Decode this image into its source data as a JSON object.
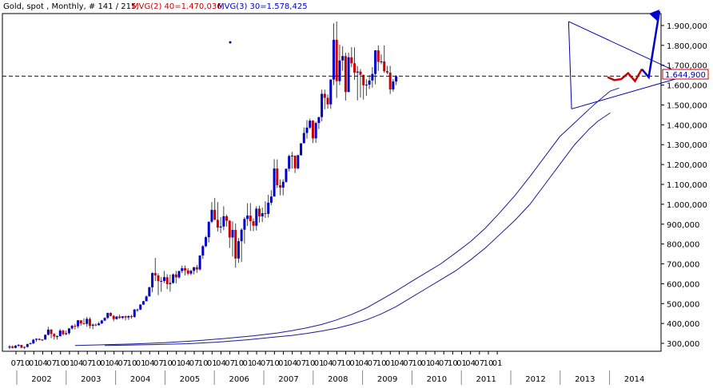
{
  "chart_data": {
    "type": "candlestick",
    "title": "Gold, spot , Monthly, # 141 / 215,",
    "indicators": [
      {
        "label": "MVG(2) 40=1.470,036,",
        "period": 40,
        "value": 1470.036
      },
      {
        "label": "MVG(3) 30=1.578,425",
        "period": 30,
        "value": 1578.425
      }
    ],
    "current_price_label": "1.644,900",
    "current_price": 1644.9,
    "ylim": [
      260,
      1960
    ],
    "y_ticks": [
      {
        "value": 300,
        "label": "300,000"
      },
      {
        "value": 400,
        "label": "400,000"
      },
      {
        "value": 500,
        "label": "500,000"
      },
      {
        "value": 600,
        "label": "600,000"
      },
      {
        "value": 700,
        "label": "700,000"
      },
      {
        "value": 800,
        "label": "800,000"
      },
      {
        "value": 900,
        "label": "900,000"
      },
      {
        "value": 1000,
        "label": "1.000,000"
      },
      {
        "value": 1100,
        "label": "1.100,000"
      },
      {
        "value": 1200,
        "label": "1.200,000"
      },
      {
        "value": 1300,
        "label": "1.300,000"
      },
      {
        "value": 1400,
        "label": "1.400,000"
      },
      {
        "value": 1500,
        "label": "1.500,000"
      },
      {
        "value": 1600,
        "label": "1.600,000"
      },
      {
        "value": 1700,
        "label": "1.700,000"
      },
      {
        "value": 1800,
        "label": "1.800,000"
      },
      {
        "value": 1900,
        "label": "1.900,000"
      }
    ],
    "x_month_ticks": [
      "07",
      "10",
      "01",
      "04",
      "07",
      "10",
      "01",
      "04",
      "07",
      "10",
      "01",
      "04",
      "07",
      "10",
      "01",
      "04",
      "07",
      "10",
      "01",
      "04",
      "07",
      "10",
      "01",
      "04",
      "07",
      "10",
      "01",
      "04",
      "07",
      "10",
      "01",
      "04",
      "07",
      "10",
      "01",
      "04",
      "07",
      "10",
      "01",
      "04",
      "07",
      "10",
      "01",
      "04",
      "07",
      "10",
      "01",
      "04",
      "07",
      "10",
      "01",
      "04",
      "07",
      "10",
      "01"
    ],
    "x_year_labels": [
      "2002",
      "2003",
      "2004",
      "2005",
      "2006",
      "2007",
      "2008",
      "2009",
      "2010",
      "2011",
      "2012",
      "2013",
      "2014"
    ],
    "candles": [
      {
        "o": 279,
        "h": 291,
        "l": 271,
        "c": 284
      },
      {
        "o": 284,
        "h": 290,
        "l": 274,
        "c": 277
      },
      {
        "o": 277,
        "h": 292,
        "l": 275,
        "c": 288
      },
      {
        "o": 288,
        "h": 296,
        "l": 282,
        "c": 292
      },
      {
        "o": 292,
        "h": 292,
        "l": 275,
        "c": 278
      },
      {
        "o": 278,
        "h": 283,
        "l": 271,
        "c": 282
      },
      {
        "o": 282,
        "h": 298,
        "l": 279,
        "c": 296
      },
      {
        "o": 296,
        "h": 305,
        "l": 295,
        "c": 300
      },
      {
        "o": 300,
        "h": 322,
        "l": 296,
        "c": 318
      },
      {
        "o": 318,
        "h": 325,
        "l": 308,
        "c": 323
      },
      {
        "o": 323,
        "h": 325,
        "l": 315,
        "c": 317
      },
      {
        "o": 317,
        "h": 320,
        "l": 312,
        "c": 319
      },
      {
        "o": 319,
        "h": 345,
        "l": 319,
        "c": 343
      },
      {
        "o": 343,
        "h": 383,
        "l": 340,
        "c": 369
      },
      {
        "o": 369,
        "h": 372,
        "l": 326,
        "c": 347
      },
      {
        "o": 347,
        "h": 352,
        "l": 319,
        "c": 334
      },
      {
        "o": 334,
        "h": 340,
        "l": 319,
        "c": 336
      },
      {
        "o": 336,
        "h": 373,
        "l": 334,
        "c": 364
      },
      {
        "o": 364,
        "h": 369,
        "l": 339,
        "c": 346
      },
      {
        "o": 346,
        "h": 365,
        "l": 341,
        "c": 351
      },
      {
        "o": 351,
        "h": 376,
        "l": 344,
        "c": 375
      },
      {
        "o": 375,
        "h": 393,
        "l": 369,
        "c": 388
      },
      {
        "o": 388,
        "h": 398,
        "l": 370,
        "c": 386
      },
      {
        "o": 386,
        "h": 417,
        "l": 376,
        "c": 416
      },
      {
        "o": 416,
        "h": 416,
        "l": 389,
        "c": 400
      },
      {
        "o": 400,
        "h": 426,
        "l": 395,
        "c": 398
      },
      {
        "o": 398,
        "h": 433,
        "l": 384,
        "c": 423
      },
      {
        "o": 423,
        "h": 431,
        "l": 375,
        "c": 388
      },
      {
        "o": 388,
        "h": 400,
        "l": 371,
        "c": 394
      },
      {
        "o": 394,
        "h": 400,
        "l": 386,
        "c": 392
      },
      {
        "o": 392,
        "h": 408,
        "l": 388,
        "c": 400
      },
      {
        "o": 400,
        "h": 418,
        "l": 397,
        "c": 415
      },
      {
        "o": 415,
        "h": 431,
        "l": 411,
        "c": 428
      },
      {
        "o": 428,
        "h": 455,
        "l": 422,
        "c": 453
      },
      {
        "o": 453,
        "h": 456,
        "l": 436,
        "c": 438
      },
      {
        "o": 438,
        "h": 443,
        "l": 411,
        "c": 422
      },
      {
        "o": 422,
        "h": 437,
        "l": 419,
        "c": 435
      },
      {
        "o": 435,
        "h": 445,
        "l": 423,
        "c": 428
      },
      {
        "o": 428,
        "h": 437,
        "l": 422,
        "c": 436
      },
      {
        "o": 436,
        "h": 440,
        "l": 416,
        "c": 430
      },
      {
        "o": 430,
        "h": 441,
        "l": 418,
        "c": 437
      },
      {
        "o": 437,
        "h": 443,
        "l": 424,
        "c": 433
      },
      {
        "o": 433,
        "h": 473,
        "l": 429,
        "c": 470
      },
      {
        "o": 470,
        "h": 475,
        "l": 458,
        "c": 470
      },
      {
        "o": 470,
        "h": 497,
        "l": 467,
        "c": 495
      },
      {
        "o": 495,
        "h": 514,
        "l": 493,
        "c": 512
      },
      {
        "o": 512,
        "h": 541,
        "l": 512,
        "c": 536
      },
      {
        "o": 536,
        "h": 585,
        "l": 536,
        "c": 582
      },
      {
        "o": 582,
        "h": 657,
        "l": 557,
        "c": 654
      },
      {
        "o": 654,
        "h": 730,
        "l": 613,
        "c": 642
      },
      {
        "o": 642,
        "h": 652,
        "l": 543,
        "c": 613
      },
      {
        "o": 613,
        "h": 633,
        "l": 559,
        "c": 614
      },
      {
        "o": 614,
        "h": 664,
        "l": 603,
        "c": 633
      },
      {
        "o": 633,
        "h": 648,
        "l": 573,
        "c": 598
      },
      {
        "o": 598,
        "h": 646,
        "l": 560,
        "c": 604
      },
      {
        "o": 604,
        "h": 652,
        "l": 600,
        "c": 647
      },
      {
        "o": 647,
        "h": 665,
        "l": 602,
        "c": 632
      },
      {
        "o": 632,
        "h": 665,
        "l": 625,
        "c": 664
      },
      {
        "o": 664,
        "h": 691,
        "l": 653,
        "c": 678
      },
      {
        "o": 678,
        "h": 692,
        "l": 642,
        "c": 667
      },
      {
        "o": 667,
        "h": 678,
        "l": 643,
        "c": 651
      },
      {
        "o": 651,
        "h": 671,
        "l": 643,
        "c": 665
      },
      {
        "o": 665,
        "h": 685,
        "l": 647,
        "c": 683
      },
      {
        "o": 683,
        "h": 695,
        "l": 655,
        "c": 672
      },
      {
        "o": 672,
        "h": 744,
        "l": 666,
        "c": 742
      },
      {
        "o": 742,
        "h": 795,
        "l": 725,
        "c": 789
      },
      {
        "o": 789,
        "h": 841,
        "l": 784,
        "c": 834
      },
      {
        "o": 834,
        "h": 913,
        "l": 808,
        "c": 912
      },
      {
        "o": 912,
        "h": 1011,
        "l": 905,
        "c": 972
      },
      {
        "o": 972,
        "h": 1032,
        "l": 920,
        "c": 922
      },
      {
        "o": 922,
        "h": 1011,
        "l": 863,
        "c": 883
      },
      {
        "o": 883,
        "h": 935,
        "l": 855,
        "c": 888
      },
      {
        "o": 888,
        "h": 990,
        "l": 869,
        "c": 940
      },
      {
        "o": 940,
        "h": 948,
        "l": 888,
        "c": 917
      },
      {
        "o": 917,
        "h": 921,
        "l": 780,
        "c": 833
      },
      {
        "o": 833,
        "h": 914,
        "l": 737,
        "c": 871
      },
      {
        "o": 871,
        "h": 904,
        "l": 681,
        "c": 727
      },
      {
        "o": 727,
        "h": 830,
        "l": 705,
        "c": 814
      },
      {
        "o": 814,
        "h": 880,
        "l": 709,
        "c": 872
      },
      {
        "o": 872,
        "h": 935,
        "l": 802,
        "c": 926
      },
      {
        "o": 926,
        "h": 1005,
        "l": 891,
        "c": 943
      },
      {
        "o": 943,
        "h": 1006,
        "l": 866,
        "c": 915
      },
      {
        "o": 915,
        "h": 929,
        "l": 865,
        "c": 892
      },
      {
        "o": 892,
        "h": 990,
        "l": 868,
        "c": 978
      },
      {
        "o": 978,
        "h": 993,
        "l": 908,
        "c": 939
      },
      {
        "o": 939,
        "h": 983,
        "l": 910,
        "c": 955
      },
      {
        "o": 955,
        "h": 1015,
        "l": 931,
        "c": 952
      },
      {
        "o": 952,
        "h": 1048,
        "l": 933,
        "c": 1008
      },
      {
        "o": 1008,
        "h": 1071,
        "l": 996,
        "c": 1039
      },
      {
        "o": 1039,
        "h": 1227,
        "l": 1040,
        "c": 1180
      },
      {
        "o": 1180,
        "h": 1226,
        "l": 1082,
        "c": 1096
      },
      {
        "o": 1096,
        "h": 1125,
        "l": 1045,
        "c": 1084
      },
      {
        "o": 1084,
        "h": 1126,
        "l": 1045,
        "c": 1113
      },
      {
        "o": 1113,
        "h": 1170,
        "l": 1108,
        "c": 1179
      },
      {
        "o": 1179,
        "h": 1250,
        "l": 1165,
        "c": 1243
      },
      {
        "o": 1243,
        "h": 1264,
        "l": 1180,
        "c": 1245
      },
      {
        "o": 1245,
        "h": 1245,
        "l": 1157,
        "c": 1181
      },
      {
        "o": 1181,
        "h": 1250,
        "l": 1175,
        "c": 1247
      },
      {
        "o": 1247,
        "h": 1307,
        "l": 1245,
        "c": 1307
      },
      {
        "o": 1307,
        "h": 1387,
        "l": 1314,
        "c": 1359
      },
      {
        "o": 1359,
        "h": 1424,
        "l": 1330,
        "c": 1386
      },
      {
        "o": 1386,
        "h": 1431,
        "l": 1378,
        "c": 1421
      },
      {
        "o": 1421,
        "h": 1424,
        "l": 1308,
        "c": 1332
      },
      {
        "o": 1332,
        "h": 1416,
        "l": 1309,
        "c": 1409
      },
      {
        "o": 1409,
        "h": 1440,
        "l": 1379,
        "c": 1439
      },
      {
        "o": 1439,
        "h": 1577,
        "l": 1418,
        "c": 1556
      },
      {
        "o": 1556,
        "h": 1577,
        "l": 1478,
        "c": 1536
      },
      {
        "o": 1536,
        "h": 1553,
        "l": 1481,
        "c": 1503
      }
    ],
    "candles_extra": [
      {
        "o": 1503,
        "h": 1628,
        "l": 1480,
        "c": 1628
      },
      {
        "o": 1628,
        "h": 1911,
        "l": 1600,
        "c": 1828
      },
      {
        "o": 1828,
        "h": 1920,
        "l": 1535,
        "c": 1620
      },
      {
        "o": 1620,
        "h": 1803,
        "l": 1600,
        "c": 1724
      },
      {
        "o": 1724,
        "h": 1795,
        "l": 1672,
        "c": 1746
      },
      {
        "o": 1746,
        "h": 1763,
        "l": 1522,
        "c": 1565
      },
      {
        "o": 1565,
        "h": 1763,
        "l": 1565,
        "c": 1740
      },
      {
        "o": 1740,
        "h": 1791,
        "l": 1690,
        "c": 1710
      },
      {
        "o": 1710,
        "h": 1790,
        "l": 1627,
        "c": 1663
      },
      {
        "o": 1663,
        "h": 1696,
        "l": 1523,
        "c": 1668
      },
      {
        "o": 1668,
        "h": 1680,
        "l": 1537,
        "c": 1652
      },
      {
        "o": 1652,
        "h": 1640,
        "l": 1527,
        "c": 1599
      },
      {
        "o": 1599,
        "h": 1630,
        "l": 1546,
        "c": 1602
      },
      {
        "o": 1602,
        "h": 1650,
        "l": 1580,
        "c": 1623
      },
      {
        "o": 1623,
        "h": 1690,
        "l": 1587,
        "c": 1656
      },
      {
        "o": 1656,
        "h": 1775,
        "l": 1604,
        "c": 1775
      },
      {
        "o": 1775,
        "h": 1800,
        "l": 1672,
        "c": 1717
      },
      {
        "o": 1717,
        "h": 1754,
        "l": 1705,
        "c": 1719
      },
      {
        "o": 1719,
        "h": 1800,
        "l": 1662,
        "c": 1670
      },
      {
        "o": 1670,
        "h": 1697,
        "l": 1655,
        "c": 1663
      },
      {
        "o": 1663,
        "h": 1697,
        "l": 1555,
        "c": 1578
      },
      {
        "o": 1578,
        "h": 1630,
        "l": 1567,
        "c": 1618
      },
      {
        "o": 1618,
        "h": 1650,
        "l": 1600,
        "c": 1644
      }
    ],
    "mvg_40": [
      [
        52,
        289
      ],
      [
        60,
        291
      ],
      [
        70,
        294
      ],
      [
        80,
        298
      ],
      [
        90,
        306
      ],
      [
        100,
        318
      ],
      [
        110,
        333
      ],
      [
        115,
        340
      ],
      [
        120,
        350
      ],
      [
        125,
        362
      ],
      [
        130,
        376
      ],
      [
        135,
        395
      ],
      [
        140,
        418
      ],
      [
        145,
        448
      ],
      [
        150,
        485
      ],
      [
        155,
        530
      ],
      [
        160,
        575
      ],
      [
        165,
        620
      ],
      [
        170,
        665
      ],
      [
        175,
        720
      ],
      [
        180,
        780
      ],
      [
        185,
        850
      ],
      [
        190,
        920
      ],
      [
        195,
        1000
      ],
      [
        200,
        1100
      ],
      [
        205,
        1200
      ],
      [
        210,
        1300
      ],
      [
        215,
        1380
      ],
      [
        218,
        1420
      ],
      [
        220,
        1440
      ],
      [
        222,
        1460
      ]
    ],
    "mvg_30": [
      [
        42,
        289
      ],
      [
        52,
        293
      ],
      [
        62,
        297
      ],
      [
        72,
        303
      ],
      [
        82,
        312
      ],
      [
        92,
        324
      ],
      [
        102,
        338
      ],
      [
        110,
        352
      ],
      [
        115,
        364
      ],
      [
        120,
        378
      ],
      [
        125,
        395
      ],
      [
        130,
        418
      ],
      [
        135,
        445
      ],
      [
        140,
        478
      ],
      [
        145,
        520
      ],
      [
        150,
        563
      ],
      [
        155,
        610
      ],
      [
        160,
        655
      ],
      [
        165,
        700
      ],
      [
        170,
        755
      ],
      [
        175,
        812
      ],
      [
        180,
        880
      ],
      [
        185,
        960
      ],
      [
        190,
        1045
      ],
      [
        195,
        1140
      ],
      [
        200,
        1240
      ],
      [
        205,
        1340
      ],
      [
        210,
        1410
      ],
      [
        215,
        1480
      ],
      [
        218,
        1520
      ],
      [
        222,
        1570
      ],
      [
        225,
        1585
      ]
    ],
    "triangle_upper": [
      [
        208,
        1920
      ],
      [
        230,
        1655
      ]
    ],
    "triangle_lower": [
      [
        209,
        1480
      ],
      [
        230,
        1640
      ]
    ],
    "forecast_path": [
      [
        224,
        1640
      ],
      [
        225,
        1625
      ],
      [
        226,
        1630
      ],
      [
        227,
        1660
      ],
      [
        228,
        1620
      ],
      [
        229,
        1680
      ],
      [
        230,
        1640
      ],
      [
        232,
        1960
      ]
    ]
  }
}
